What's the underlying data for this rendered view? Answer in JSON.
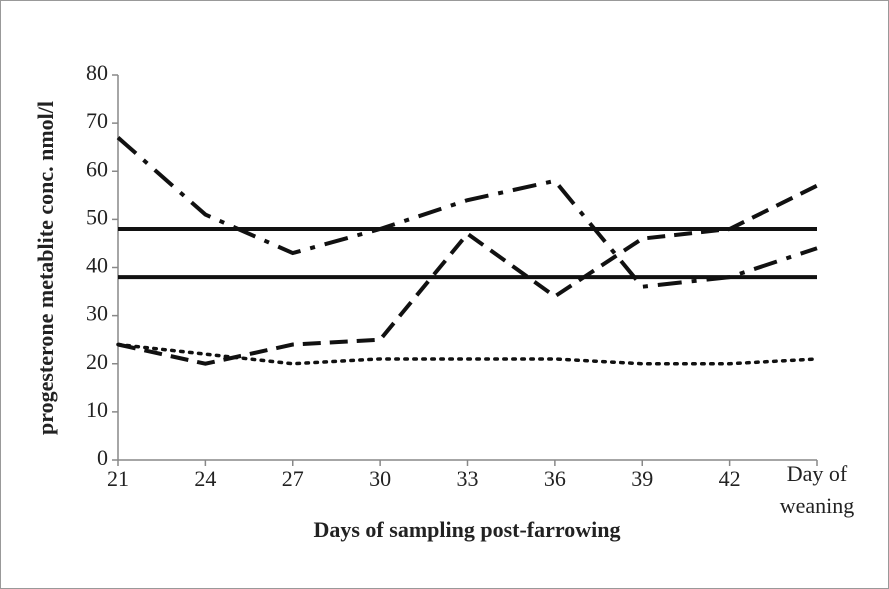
{
  "chart_data": {
    "type": "line",
    "x_label": "Days of sampling post-farrowing",
    "y_label": "progesterone metablite conc. nmol/l",
    "categories": [
      "21",
      "24",
      "27",
      "30",
      "33",
      "36",
      "39",
      "42",
      "Day of weaning"
    ],
    "series": [
      {
        "color": "#111111",
        "style": "dash-dot",
        "values": [
          67,
          51,
          43,
          48,
          54,
          58,
          36,
          38,
          44
        ]
      },
      {
        "color": "#111111",
        "style": "dashed",
        "values": [
          24,
          20,
          24,
          25,
          47,
          34,
          46,
          48,
          57
        ]
      },
      {
        "color": "#111111",
        "style": "dotted",
        "values": [
          24,
          22,
          20,
          21,
          21,
          21,
          20,
          20,
          21
        ]
      },
      {
        "color": "#111111",
        "style": "solid",
        "values": [
          48,
          48,
          48,
          48,
          48,
          48,
          48,
          48,
          48
        ]
      },
      {
        "color": "#111111",
        "style": "solid",
        "values": [
          38,
          38,
          38,
          38,
          38,
          38,
          38,
          38,
          38
        ]
      }
    ],
    "ylim": [
      0,
      80
    ],
    "yticks": [
      0,
      10,
      20,
      30,
      40,
      50,
      60,
      70,
      80
    ],
    "grid": false
  }
}
